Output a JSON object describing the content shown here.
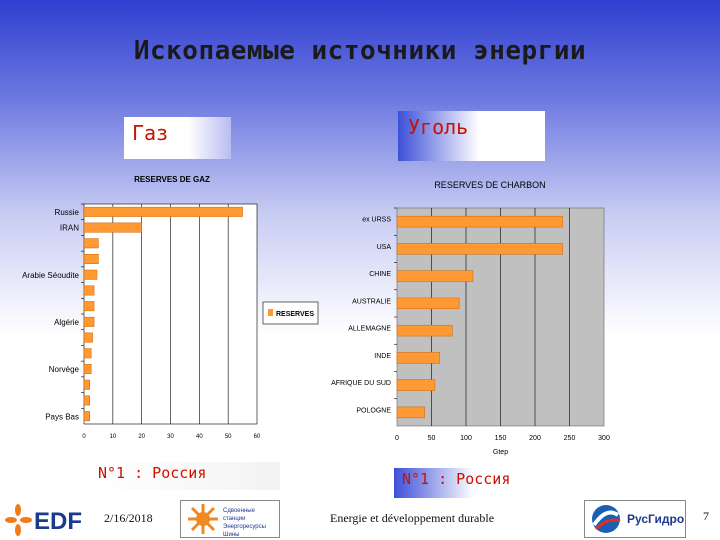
{
  "title": "Ископаемые источники энергии",
  "labels": {
    "gas": "Газ",
    "coal": "Уголь",
    "rank_gas": "N°1 : Россия",
    "rank_coal": "N°1 : Россия"
  },
  "footer": {
    "date": "2/16/2018",
    "center": "Energie et développement durable",
    "page": "7",
    "logo_edf": "EDF",
    "logo_sun_lines": [
      "Сдвоенные станции",
      "Энергоресурсы",
      "Шины"
    ],
    "logo_rus": "РусГидро"
  },
  "colors": {
    "bar": "#ff9933",
    "bar_stroke": "#cc6600",
    "coal_plot_bg": "#c0c0c0",
    "label_red": "#cc1100"
  },
  "chart_data": [
    {
      "type": "bar",
      "orientation": "horizontal",
      "title": "RESERVES DE GAZ",
      "categories": [
        "Russie",
        "IRAN",
        "",
        "",
        "Arabie Séoudite",
        "",
        "",
        "Algérie",
        "",
        "",
        "Norvège",
        "",
        "",
        "Pays Bas"
      ],
      "values": [
        55,
        20,
        5,
        5,
        4.5,
        3.5,
        3.5,
        3.5,
        3,
        2.5,
        2.5,
        2,
        2,
        2
      ],
      "xlim": [
        0,
        60
      ],
      "xticks": [
        "0",
        "10",
        "20",
        "30",
        "40",
        "50",
        "60"
      ],
      "legend": "RESERVES",
      "legend_position": "right"
    },
    {
      "type": "bar",
      "orientation": "horizontal",
      "title": "RESERVES DE CHARBON",
      "categories": [
        "ex URSS",
        "USA",
        "CHINE",
        "AUSTRALIE",
        "ALLEMAGNE",
        "INDE",
        "AFRIQUE DU SUD",
        "POLOGNE"
      ],
      "values": [
        240,
        240,
        110,
        90,
        80,
        62,
        55,
        40
      ],
      "xlim": [
        0,
        300
      ],
      "xticks": [
        "0",
        "50",
        "100",
        "150",
        "200",
        "250",
        "300"
      ],
      "xlabel": "Gtep"
    }
  ]
}
